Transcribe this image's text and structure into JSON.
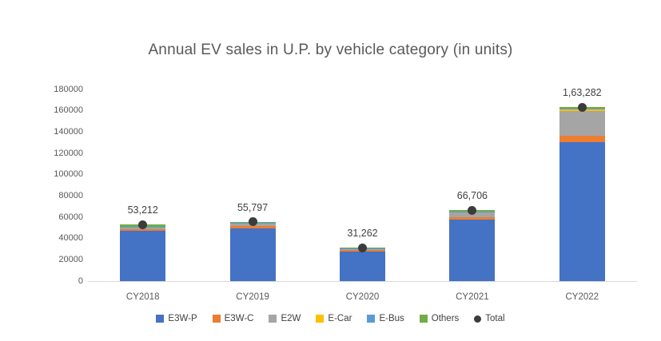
{
  "chart_data": {
    "type": "bar",
    "stacked": true,
    "title": "Annual EV sales in U.P. by vehicle category (in units)",
    "categories": [
      "CY2018",
      "CY2019",
      "CY2020",
      "CY2021",
      "CY2022"
    ],
    "series": [
      {
        "name": "E3W-P",
        "color": "#4472C4",
        "values": [
          47000,
          49200,
          27500,
          57800,
          130500
        ]
      },
      {
        "name": "E3W-C",
        "color": "#ED7D31",
        "values": [
          1400,
          2200,
          1400,
          2300,
          6000
        ]
      },
      {
        "name": "E2W",
        "color": "#A5A5A5",
        "values": [
          2600,
          3000,
          800,
          5200,
          23500
        ]
      },
      {
        "name": "E-Car",
        "color": "#FFC000",
        "values": [
          150,
          180,
          700,
          200,
          1000
        ]
      },
      {
        "name": "E-Bus",
        "color": "#5B9BD5",
        "values": [
          62,
          117,
          162,
          106,
          1282
        ]
      },
      {
        "name": "Others",
        "color": "#70AD47",
        "values": [
          2000,
          1100,
          700,
          1100,
          1000
        ]
      }
    ],
    "totals": {
      "name": "Total",
      "marker": "dot",
      "color": "#3b3b3b",
      "values": [
        53212,
        55797,
        31262,
        66706,
        163282
      ],
      "labels": [
        "53,212",
        "55,797",
        "31,262",
        "66,706",
        "1,63,282"
      ]
    },
    "xlabel": "",
    "ylabel": "",
    "ylim": [
      0,
      180000
    ],
    "ytick_step": 20000,
    "yticks": [
      0,
      20000,
      40000,
      60000,
      80000,
      100000,
      120000,
      140000,
      160000,
      180000
    ],
    "gridlines": false,
    "legend_position": "bottom",
    "axis_line_color": "#d9d9d9",
    "axis_text_color": "#595959",
    "label_text_color": "#404040"
  }
}
